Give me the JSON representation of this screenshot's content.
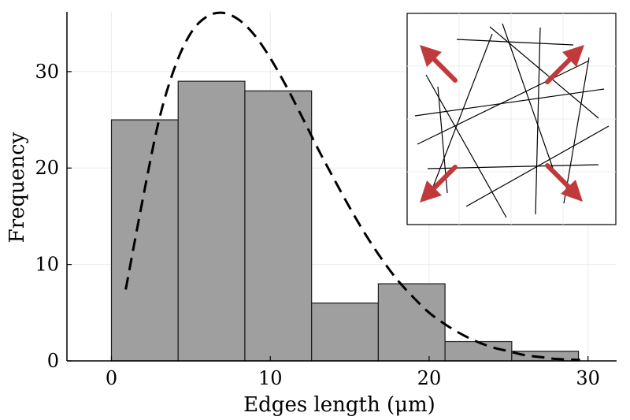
{
  "chart_data": {
    "type": "bar",
    "subtype": "histogram",
    "xlabel": "Edges length (μm)",
    "ylabel": "Frequency",
    "xlim": [
      -2.8,
      31.8
    ],
    "ylim": [
      0,
      36.2
    ],
    "xticks": [
      0,
      10,
      20,
      30
    ],
    "yticks": [
      0,
      10,
      20,
      30
    ],
    "grid": true,
    "bins": [
      {
        "x0": 0.0,
        "x1": 4.2,
        "count": 25
      },
      {
        "x0": 4.2,
        "x1": 8.4,
        "count": 29
      },
      {
        "x0": 8.4,
        "x1": 12.6,
        "count": 28
      },
      {
        "x0": 12.6,
        "x1": 16.8,
        "count": 6
      },
      {
        "x0": 16.8,
        "x1": 21.0,
        "count": 8
      },
      {
        "x0": 21.0,
        "x1": 25.2,
        "count": 2
      },
      {
        "x0": 25.2,
        "x1": 29.4,
        "count": 1
      }
    ],
    "fit_curve": {
      "style": "dashed",
      "x": [
        0.9,
        2,
        3,
        4,
        5,
        6,
        7,
        8,
        9,
        10,
        11,
        12,
        13,
        14,
        15,
        16,
        17,
        18,
        19,
        20,
        21,
        22,
        23,
        24,
        25,
        26,
        27,
        28,
        29.5
      ],
      "y": [
        7.4,
        17,
        25,
        30.5,
        34,
        35.7,
        36.1,
        35.4,
        33.8,
        31.4,
        28.5,
        25.3,
        22.0,
        18.9,
        15.9,
        13.1,
        10.6,
        8.4,
        6.6,
        5.0,
        3.8,
        2.8,
        2.0,
        1.4,
        1.0,
        0.6,
        0.4,
        0.2,
        0.1
      ]
    },
    "colors": {
      "bar_fill": "#9f9f9f",
      "bar_stroke": "#1a1a1a",
      "curve": "#000000",
      "inset_arrows": "#c0393b"
    },
    "inset": {
      "description_type": "fiber-network",
      "arrows": [
        "up-left",
        "up-right",
        "down-left",
        "down-right"
      ]
    }
  }
}
